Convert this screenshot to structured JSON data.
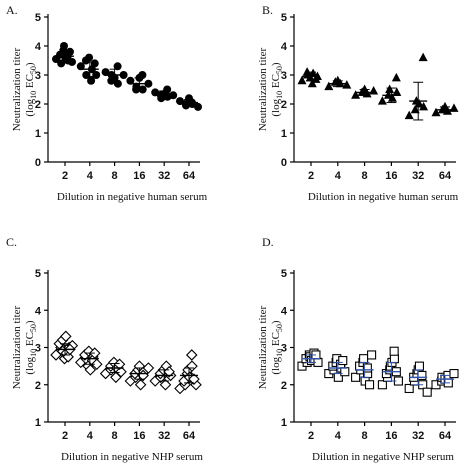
{
  "chart_data": [
    {
      "panel_label": "A.",
      "type": "scatter",
      "marker": "circle",
      "ylabel_line1": "Neutralization titer",
      "ylabel_prefix": "(log",
      "ylabel_sub1": "10",
      "ylabel_mid": " EC",
      "ylabel_sub2": "50",
      "ylabel_suffix": ")",
      "xlabel": "Dilution in negative human serum",
      "categories": [
        "2",
        "4",
        "8",
        "16",
        "32",
        "64"
      ],
      "yticks": [
        "0",
        "1",
        "2",
        "3",
        "4",
        "5"
      ],
      "ylim": [
        0,
        5
      ],
      "series": [
        {
          "points": [
            [
              3.55,
              3.4,
              3.7,
              3.85,
              4.0,
              3.6,
              3.5,
              3.65,
              3.45,
              3.8
            ]
          ],
          "mean": 3.65,
          "sd": 0.2
        },
        {
          "points": [
            [
              3.3,
              3.0,
              3.5,
              3.6,
              2.8,
              3.2,
              3.0,
              3.4
            ]
          ],
          "mean": 3.2,
          "sd": 0.25
        },
        {
          "points": [
            [
              3.1,
              2.8,
              3.0,
              2.9,
              3.3,
              2.7,
              3.0
            ]
          ],
          "mean": 3.0,
          "sd": 0.2
        },
        {
          "points": [
            [
              2.8,
              2.5,
              2.6,
              2.9,
              3.0,
              2.5,
              2.7
            ]
          ],
          "mean": 2.7,
          "sd": 0.2
        },
        {
          "points": [
            [
              2.4,
              2.3,
              2.2,
              2.35,
              2.5,
              2.25,
              2.3
            ]
          ],
          "mean": 2.35,
          "sd": 0.1
        },
        {
          "points": [
            [
              2.1,
              2.0,
              1.95,
              2.2,
              2.05,
              2.0,
              1.9
            ]
          ],
          "mean": 2.05,
          "sd": 0.1
        }
      ]
    },
    {
      "panel_label": "B.",
      "type": "scatter",
      "marker": "triangle",
      "ylabel_line1": "Neutralization titer",
      "ylabel_prefix": "(log",
      "ylabel_sub1": "10",
      "ylabel_mid": " EC",
      "ylabel_sub2": "50",
      "ylabel_suffix": ")",
      "xlabel": "Dilution in negative human serum",
      "categories": [
        "2",
        "4",
        "8",
        "16",
        "32",
        "64"
      ],
      "yticks": [
        "0",
        "1",
        "2",
        "3",
        "4",
        "5"
      ],
      "ylim": [
        0,
        5
      ],
      "series": [
        {
          "points": [
            [
              2.8,
              3.0,
              3.1,
              2.9,
              2.7,
              3.05,
              2.95,
              2.85
            ]
          ],
          "mean": 2.95,
          "sd": 0.15
        },
        {
          "points": [
            [
              2.6,
              2.75,
              2.8,
              2.7,
              2.65
            ]
          ],
          "mean": 2.7,
          "sd": 0.1
        },
        {
          "points": [
            [
              2.3,
              2.4,
              2.5,
              2.35,
              2.45
            ]
          ],
          "mean": 2.4,
          "sd": 0.1
        },
        {
          "points": [
            [
              2.1,
              2.3,
              2.5,
              2.2,
              2.4,
              2.9
            ]
          ],
          "mean": 2.3,
          "sd": 0.25
        },
        {
          "points": [
            [
              1.6,
              1.8,
              2.1,
              2.0,
              1.9,
              3.6
            ]
          ],
          "mean": 2.1,
          "sd": 0.65
        },
        {
          "points": [
            [
              1.7,
              1.8,
              1.9,
              1.75,
              1.85
            ]
          ],
          "mean": 1.8,
          "sd": 0.1
        }
      ]
    },
    {
      "panel_label": "C.",
      "type": "scatter",
      "marker": "diamond",
      "ylabel_line1": "Neutralization titer",
      "ylabel_prefix": "(log",
      "ylabel_sub1": "10",
      "ylabel_mid": " EC",
      "ylabel_sub2": "50",
      "ylabel_suffix": ")",
      "xlabel": "Dilution in negative NHP serum",
      "categories": [
        "2",
        "4",
        "8",
        "16",
        "32",
        "64"
      ],
      "yticks": [
        "1",
        "2",
        "3",
        "4",
        "5"
      ],
      "ylim": [
        1,
        5
      ],
      "series": [
        {
          "points": [
            [
              2.8,
              3.0,
              3.1,
              2.9,
              3.2,
              2.7,
              3.3,
              2.85,
              3.0,
              2.75,
              3.05,
              2.95
            ]
          ],
          "mean": 2.95,
          "sd": 0.15
        },
        {
          "points": [
            [
              2.6,
              2.7,
              2.8,
              2.5,
              2.9,
              2.4,
              2.75,
              2.65,
              2.55,
              2.85
            ]
          ],
          "mean": 2.7,
          "sd": 0.15
        },
        {
          "points": [
            [
              2.3,
              2.4,
              2.5,
              2.6,
              2.2,
              2.45,
              2.35,
              2.55
            ]
          ],
          "mean": 2.45,
          "sd": 0.12
        },
        {
          "points": [
            [
              2.1,
              2.2,
              2.3,
              2.4,
              2.5,
              2.0,
              2.35,
              2.25,
              2.45
            ]
          ],
          "mean": 2.3,
          "sd": 0.15
        },
        {
          "points": [
            [
              2.1,
              2.2,
              2.3,
              2.4,
              2.0,
              2.5,
              2.25,
              2.35
            ]
          ],
          "mean": 2.25,
          "sd": 0.15
        },
        {
          "points": [
            [
              1.9,
              2.0,
              2.1,
              2.3,
              2.4,
              2.2,
              2.5,
              2.8,
              2.0,
              2.15
            ]
          ],
          "mean": 2.25,
          "sd": 0.2
        }
      ]
    },
    {
      "panel_label": "D.",
      "type": "scatter",
      "marker": "square",
      "ylabel_line1": "Neutralization titer",
      "ylabel_prefix": "(log",
      "ylabel_sub1": "10",
      "ylabel_mid": " EC",
      "ylabel_sub2": "50",
      "ylabel_suffix": ")",
      "xlabel": "Dilution in negative NHP serum",
      "categories": [
        "2",
        "4",
        "8",
        "16",
        "32",
        "64"
      ],
      "yticks": [
        "1",
        "2",
        "3",
        "4",
        "5"
      ],
      "ylim": [
        1,
        5
      ],
      "mean_color": "#3355aa",
      "series": [
        {
          "points": [
            [
              2.5,
              2.6,
              2.7,
              2.8,
              2.75,
              2.65,
              2.85,
              2.7,
              2.6,
              2.8
            ]
          ],
          "mean": 2.7,
          "sd": 0.1
        },
        {
          "points": [
            [
              2.3,
              2.4,
              2.5,
              2.6,
              2.7,
              2.2,
              2.45,
              2.55,
              2.35,
              2.65
            ]
          ],
          "mean": 2.45,
          "sd": 0.15
        },
        {
          "points": [
            [
              2.2,
              2.4,
              2.5,
              2.6,
              2.7,
              2.1,
              2.3,
              2.45,
              2.8,
              2.0
            ]
          ],
          "mean": 2.4,
          "sd": 0.2
        },
        {
          "points": [
            [
              2.0,
              2.2,
              2.3,
              2.4,
              2.5,
              2.6,
              2.7,
              2.9,
              2.1,
              2.35
            ]
          ],
          "mean": 2.35,
          "sd": 0.25
        },
        {
          "points": [
            [
              1.9,
              2.1,
              2.2,
              2.3,
              2.4,
              2.5,
              2.0,
              2.25,
              1.8
            ]
          ],
          "mean": 2.2,
          "sd": 0.2
        },
        {
          "points": [
            [
              2.0,
              2.1,
              2.2,
              2.15,
              2.25,
              2.05,
              2.3
            ]
          ],
          "mean": 2.15,
          "sd": 0.1
        }
      ]
    }
  ]
}
